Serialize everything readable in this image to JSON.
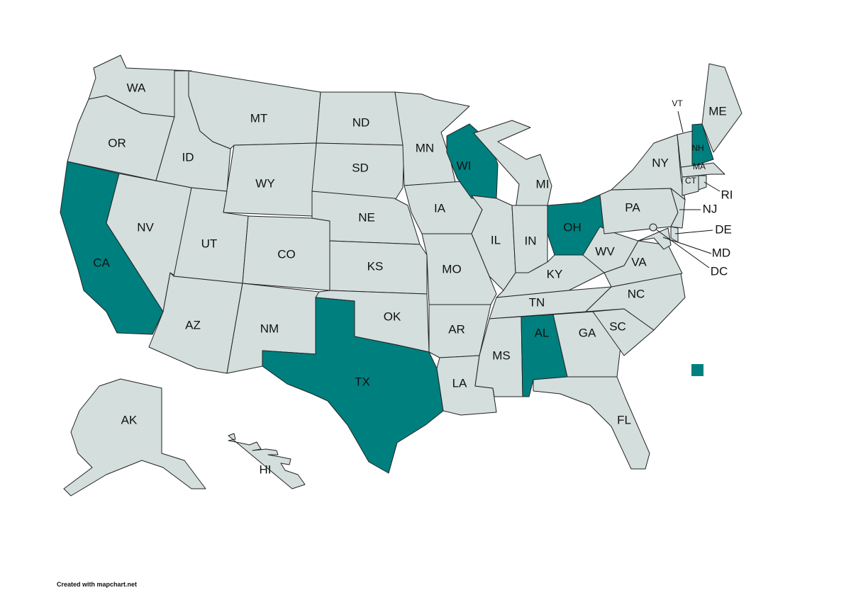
{
  "map": {
    "colors": {
      "default": "#d3dedd",
      "highlight": "#007f7f",
      "border": "#222222"
    },
    "states": [
      {
        "abbr": "WA",
        "highlighted": false
      },
      {
        "abbr": "OR",
        "highlighted": false
      },
      {
        "abbr": "CA",
        "highlighted": true
      },
      {
        "abbr": "NV",
        "highlighted": false
      },
      {
        "abbr": "ID",
        "highlighted": false
      },
      {
        "abbr": "MT",
        "highlighted": false
      },
      {
        "abbr": "WY",
        "highlighted": false
      },
      {
        "abbr": "UT",
        "highlighted": false
      },
      {
        "abbr": "CO",
        "highlighted": false
      },
      {
        "abbr": "AZ",
        "highlighted": false
      },
      {
        "abbr": "NM",
        "highlighted": false
      },
      {
        "abbr": "ND",
        "highlighted": false
      },
      {
        "abbr": "SD",
        "highlighted": false
      },
      {
        "abbr": "NE",
        "highlighted": false
      },
      {
        "abbr": "KS",
        "highlighted": false
      },
      {
        "abbr": "OK",
        "highlighted": false
      },
      {
        "abbr": "TX",
        "highlighted": true
      },
      {
        "abbr": "MN",
        "highlighted": false
      },
      {
        "abbr": "IA",
        "highlighted": false
      },
      {
        "abbr": "MO",
        "highlighted": false
      },
      {
        "abbr": "AR",
        "highlighted": false
      },
      {
        "abbr": "LA",
        "highlighted": false
      },
      {
        "abbr": "WI",
        "highlighted": true
      },
      {
        "abbr": "IL",
        "highlighted": false
      },
      {
        "abbr": "MI",
        "highlighted": false
      },
      {
        "abbr": "IN",
        "highlighted": false
      },
      {
        "abbr": "OH",
        "highlighted": true
      },
      {
        "abbr": "KY",
        "highlighted": false
      },
      {
        "abbr": "TN",
        "highlighted": false
      },
      {
        "abbr": "MS",
        "highlighted": false
      },
      {
        "abbr": "AL",
        "highlighted": true
      },
      {
        "abbr": "GA",
        "highlighted": false
      },
      {
        "abbr": "FL",
        "highlighted": false
      },
      {
        "abbr": "SC",
        "highlighted": false
      },
      {
        "abbr": "NC",
        "highlighted": false
      },
      {
        "abbr": "VA",
        "highlighted": false
      },
      {
        "abbr": "WV",
        "highlighted": false
      },
      {
        "abbr": "PA",
        "highlighted": false
      },
      {
        "abbr": "NY",
        "highlighted": false
      },
      {
        "abbr": "VT",
        "highlighted": false
      },
      {
        "abbr": "NH",
        "highlighted": true
      },
      {
        "abbr": "ME",
        "highlighted": false
      },
      {
        "abbr": "MA",
        "highlighted": false
      },
      {
        "abbr": "CT",
        "highlighted": false
      },
      {
        "abbr": "RI",
        "highlighted": false
      },
      {
        "abbr": "NJ",
        "highlighted": false
      },
      {
        "abbr": "DE",
        "highlighted": false
      },
      {
        "abbr": "MD",
        "highlighted": false
      },
      {
        "abbr": "DC",
        "highlighted": false
      },
      {
        "abbr": "AK",
        "highlighted": false
      },
      {
        "abbr": "HI",
        "highlighted": false
      }
    ]
  },
  "legend": {
    "color": "#007f7f",
    "label": ""
  },
  "credit": "Created with mapchart.net"
}
